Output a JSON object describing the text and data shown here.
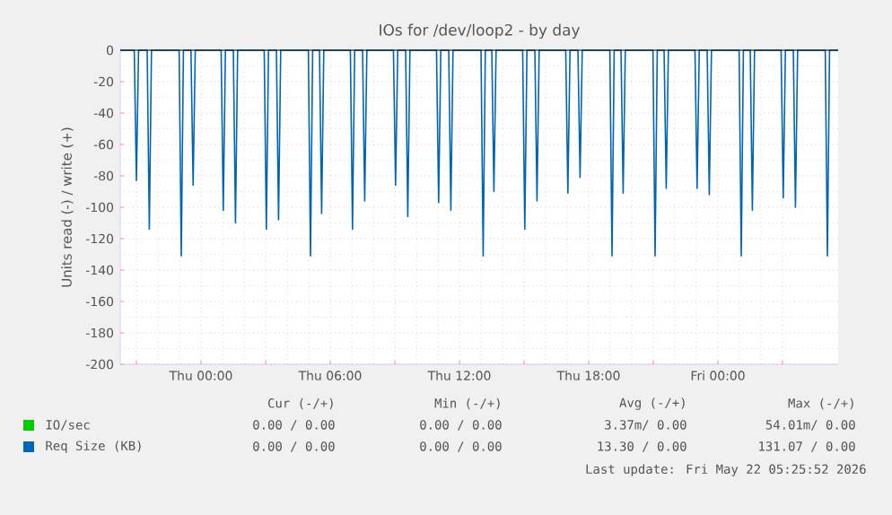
{
  "chart_data": {
    "type": "line",
    "title": "IOs for /dev/loop2 - by day",
    "ylabel": "Units read (-) / write (+)",
    "xlim": [
      "2026-05-20T20:15",
      "2026-05-22T05:35"
    ],
    "ylim": [
      -200,
      0
    ],
    "xticks": [
      {
        "value": "2026-05-20T21:00",
        "label": null
      },
      {
        "value": "2026-05-21T00:00",
        "label": "Thu 00:00"
      },
      {
        "value": "2026-05-21T03:00",
        "label": null
      },
      {
        "value": "2026-05-21T06:00",
        "label": "Thu 06:00"
      },
      {
        "value": "2026-05-21T09:00",
        "label": null
      },
      {
        "value": "2026-05-21T12:00",
        "label": "Thu 12:00"
      },
      {
        "value": "2026-05-21T15:00",
        "label": null
      },
      {
        "value": "2026-05-21T18:00",
        "label": "Thu 18:00"
      },
      {
        "value": "2026-05-21T21:00",
        "label": null
      },
      {
        "value": "2026-05-22T00:00",
        "label": "Fri 00:00"
      },
      {
        "value": "2026-05-22T03:00",
        "label": null
      }
    ],
    "yticks": [
      -200,
      -180,
      -160,
      -140,
      -120,
      -100,
      -80,
      -60,
      -40,
      -20,
      0
    ],
    "grid": true,
    "legend": "bottom left",
    "marker": "none",
    "series": [
      {
        "name": "IO/sec",
        "color": "#00cc00"
      },
      {
        "name": "Req Size (KB)",
        "color": "#0066b3",
        "x": [
          "2026-05-20T20:15",
          "2026-05-20T20:54",
          "2026-05-20T21:00",
          "2026-05-20T21:06",
          "2026-05-20T21:30",
          "2026-05-20T21:36",
          "2026-05-20T21:42",
          "2026-05-20T22:59",
          "2026-05-20T23:05",
          "2026-05-20T23:11",
          "2026-05-20T23:32",
          "2026-05-20T23:38",
          "2026-05-20T23:44",
          "2026-05-21T00:56",
          "2026-05-21T01:02",
          "2026-05-21T01:08",
          "2026-05-21T01:30",
          "2026-05-21T01:36",
          "2026-05-21T01:42",
          "2026-05-21T02:56",
          "2026-05-21T03:02",
          "2026-05-21T03:08",
          "2026-05-21T03:30",
          "2026-05-21T03:36",
          "2026-05-21T03:42",
          "2026-05-21T04:59",
          "2026-05-21T05:05",
          "2026-05-21T05:11",
          "2026-05-21T05:30",
          "2026-05-21T05:36",
          "2026-05-21T05:42",
          "2026-05-21T06:56",
          "2026-05-21T07:02",
          "2026-05-21T07:08",
          "2026-05-21T07:30",
          "2026-05-21T07:36",
          "2026-05-21T07:42",
          "2026-05-21T08:56",
          "2026-05-21T09:02",
          "2026-05-21T09:08",
          "2026-05-21T09:30",
          "2026-05-21T09:36",
          "2026-05-21T09:42",
          "2026-05-21T10:56",
          "2026-05-21T11:02",
          "2026-05-21T11:08",
          "2026-05-21T11:30",
          "2026-05-21T11:36",
          "2026-05-21T11:42",
          "2026-05-21T13:00",
          "2026-05-21T13:06",
          "2026-05-21T13:12",
          "2026-05-21T13:30",
          "2026-05-21T13:36",
          "2026-05-21T13:42",
          "2026-05-21T14:56",
          "2026-05-21T15:02",
          "2026-05-21T15:08",
          "2026-05-21T15:30",
          "2026-05-21T15:36",
          "2026-05-21T15:42",
          "2026-05-21T16:56",
          "2026-05-21T17:02",
          "2026-05-21T17:08",
          "2026-05-21T17:30",
          "2026-05-21T17:36",
          "2026-05-21T17:42",
          "2026-05-21T18:59",
          "2026-05-21T19:05",
          "2026-05-21T19:11",
          "2026-05-21T19:30",
          "2026-05-21T19:36",
          "2026-05-21T19:42",
          "2026-05-21T20:59",
          "2026-05-21T21:05",
          "2026-05-21T21:11",
          "2026-05-21T21:30",
          "2026-05-21T21:36",
          "2026-05-21T21:42",
          "2026-05-21T22:56",
          "2026-05-21T23:02",
          "2026-05-21T23:08",
          "2026-05-21T23:30",
          "2026-05-21T23:36",
          "2026-05-21T23:42",
          "2026-05-22T00:59",
          "2026-05-22T01:05",
          "2026-05-22T01:11",
          "2026-05-22T01:30",
          "2026-05-22T01:36",
          "2026-05-22T01:42",
          "2026-05-22T02:56",
          "2026-05-22T03:02",
          "2026-05-22T03:08",
          "2026-05-22T03:30",
          "2026-05-22T03:36",
          "2026-05-22T03:42",
          "2026-05-22T04:59",
          "2026-05-22T05:05",
          "2026-05-22T05:11",
          "2026-05-22T05:35"
        ],
        "values": [
          0,
          0,
          -83,
          0,
          0,
          -114,
          0,
          0,
          -131,
          0,
          0,
          -86,
          0,
          0,
          -102,
          0,
          0,
          -110,
          0,
          0,
          -114,
          0,
          0,
          -108,
          0,
          0,
          -131,
          0,
          0,
          -104,
          0,
          0,
          -114,
          0,
          0,
          -96,
          0,
          0,
          -86,
          0,
          0,
          -106,
          0,
          0,
          -97,
          0,
          0,
          -102,
          0,
          0,
          -131,
          0,
          0,
          -90,
          0,
          0,
          -114,
          0,
          0,
          -96,
          0,
          0,
          -91,
          0,
          0,
          -81,
          0,
          0,
          -131,
          0,
          0,
          -91,
          0,
          0,
          -131,
          0,
          0,
          -88,
          0,
          0,
          -88,
          0,
          0,
          -92,
          0,
          0,
          -131,
          0,
          0,
          -102,
          0,
          0,
          -94,
          0,
          0,
          -100,
          0,
          0,
          -131,
          0,
          0
        ]
      }
    ],
    "annotations": [
      "Cur (-/+)",
      "Min (-/+)",
      "Avg (-/+)",
      "Max (-/+)",
      "0.00 / 0.00",
      "0.00 / 0.00",
      "3.37m/ 0.00",
      "54.01m/ 0.00",
      "0.00 / 0.00",
      "0.00 / 0.00",
      "13.30 / 0.00",
      "131.07 / 0.00",
      "Last update: Fri May 22 05:25:52 2026"
    ]
  }
}
